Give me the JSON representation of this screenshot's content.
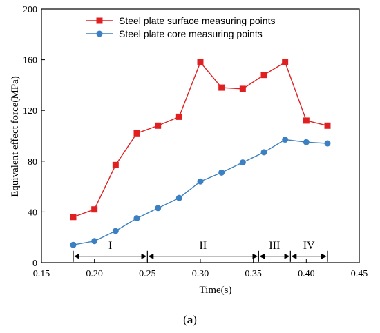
{
  "chart_data": {
    "type": "line",
    "xlabel": "Time(s)",
    "ylabel": "Equivalent effect force(MPa)",
    "xlim": [
      0.15,
      0.45
    ],
    "ylim": [
      0,
      200
    ],
    "xticks": [
      "0.15",
      "0.20",
      "0.25",
      "0.30",
      "0.35",
      "0.40",
      "0.45"
    ],
    "yticks": [
      "0",
      "40",
      "80",
      "120",
      "160",
      "200"
    ],
    "x": [
      0.18,
      0.2,
      0.22,
      0.24,
      0.26,
      0.28,
      0.3,
      0.32,
      0.34,
      0.36,
      0.38,
      0.4,
      0.42
    ],
    "series": [
      {
        "name": "Steel plate surface measuring points",
        "color": "#e02020",
        "marker": "square",
        "values": [
          36,
          42,
          77,
          102,
          108,
          115,
          158,
          138,
          137,
          148,
          158,
          112,
          108
        ]
      },
      {
        "name": "Steel plate core measuring points",
        "color": "#3a80c2",
        "marker": "circle",
        "values": [
          14,
          17,
          25,
          35,
          43,
          51,
          64,
          71,
          79,
          87,
          97,
          95,
          94
        ]
      }
    ],
    "legend_position": "top-left",
    "grid": false,
    "stages": [
      {
        "label": "I",
        "start": 0.18,
        "end": 0.25
      },
      {
        "label": "II",
        "start": 0.25,
        "end": 0.355
      },
      {
        "label": "III",
        "start": 0.355,
        "end": 0.385
      },
      {
        "label": "IV",
        "start": 0.385,
        "end": 0.42
      }
    ],
    "stage_arrow_y": 5,
    "stage_label_y": 11
  },
  "caption": {
    "prefix": "(",
    "letter": "a",
    "suffix": ")"
  }
}
